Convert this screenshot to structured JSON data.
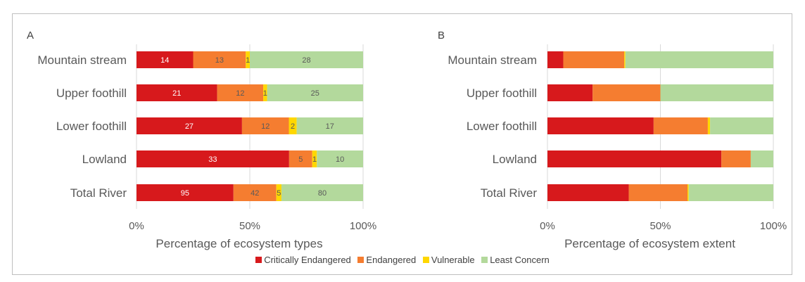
{
  "colors": {
    "critically_endangered": "#d7191c",
    "endangered": "#f57d30",
    "vulnerable": "#ffd700",
    "least_concern": "#b3d99c"
  },
  "legend": {
    "items": [
      {
        "label": "Critically Endangered",
        "color": "#d7191c"
      },
      {
        "label": "Endangered",
        "color": "#f57d30"
      },
      {
        "label": "Vulnerable",
        "color": "#ffd700"
      },
      {
        "label": "Least Concern",
        "color": "#b3d99c"
      }
    ]
  },
  "chart_data": [
    {
      "type": "bar",
      "orientation": "horizontal",
      "stacked": "percent",
      "panel_label": "A",
      "xlabel": "Percentage of ecosystem types",
      "x_ticks": [
        "0%",
        "50%",
        "100%"
      ],
      "xlim": [
        0,
        100
      ],
      "grid": true,
      "legend_position": "bottom",
      "categories": [
        "Mountain stream",
        "Upper foothill",
        "Lower foothill",
        "Lowland",
        "Total River"
      ],
      "series": [
        {
          "name": "Critically Endangered",
          "values": [
            14,
            21,
            27,
            33,
            95
          ],
          "labels": [
            "14",
            "21",
            "27",
            "33",
            "95"
          ]
        },
        {
          "name": "Endangered",
          "values": [
            13,
            12,
            12,
            5,
            42
          ],
          "labels": [
            "13",
            "12",
            "12",
            "5",
            "42"
          ]
        },
        {
          "name": "Vulnerable",
          "values": [
            1,
            1,
            2,
            1,
            5
          ],
          "labels": [
            "1",
            "1",
            "2",
            "1",
            "5"
          ]
        },
        {
          "name": "Least Concern",
          "values": [
            28,
            25,
            17,
            10,
            80
          ],
          "labels": [
            "28",
            "25",
            "17",
            "10",
            "80"
          ]
        }
      ]
    },
    {
      "type": "bar",
      "orientation": "horizontal",
      "stacked": "percent",
      "panel_label": "B",
      "xlabel": "Percentage of ecosystem extent",
      "x_ticks": [
        "0%",
        "50%",
        "100%"
      ],
      "xlim": [
        0,
        100
      ],
      "grid": true,
      "legend_position": "bottom",
      "categories": [
        "Mountain stream",
        "Upper foothill",
        "Lower foothill",
        "Lowland",
        "Total River"
      ],
      "series": [
        {
          "name": "Critically Endangered",
          "values": [
            7,
            20,
            47,
            77,
            36
          ]
        },
        {
          "name": "Endangered",
          "values": [
            27,
            30,
            24,
            13,
            26
          ]
        },
        {
          "name": "Vulnerable",
          "values": [
            0.5,
            0,
            1,
            0,
            0.5
          ]
        },
        {
          "name": "Least Concern",
          "values": [
            65.5,
            50,
            28,
            10,
            37.5
          ]
        }
      ]
    }
  ]
}
